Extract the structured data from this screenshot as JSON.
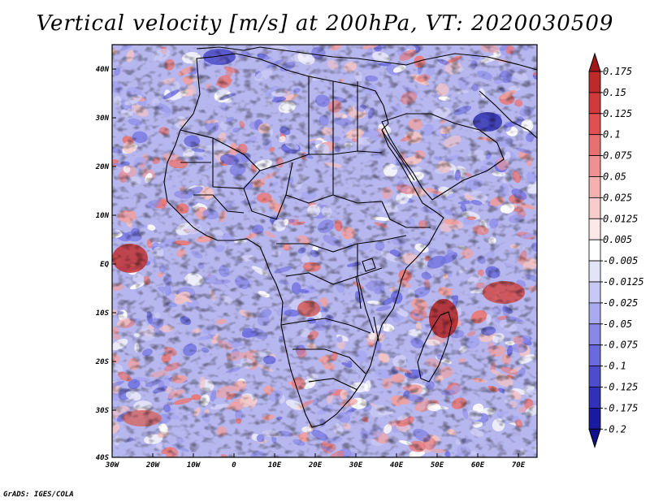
{
  "title": "Vertical velocity [m/s] at 200hPa, VT: 2020030509",
  "credit": "GrADS: IGES/COLA",
  "lat_labels": [
    "40N",
    "30N",
    "20N",
    "10N",
    "EQ",
    "10S",
    "20S",
    "30S",
    "40S"
  ],
  "lon_labels": [
    "30W",
    "20W",
    "10W",
    "0",
    "10E",
    "20E",
    "30E",
    "40E",
    "50E",
    "60E",
    "70E"
  ],
  "colorbar": {
    "labels": [
      "0.175",
      "0.15",
      "0.125",
      "0.1",
      "0.075",
      "0.05",
      "0.025",
      "0.0125",
      "0.005",
      "-0.005",
      "-0.0125",
      "-0.025",
      "-0.05",
      "-0.075",
      "-0.1",
      "-0.125",
      "-0.175",
      "-0.2"
    ],
    "colors": [
      "#a01818",
      "#bc2a2a",
      "#d03a3a",
      "#e05050",
      "#e87070",
      "#f09090",
      "#f5b0b0",
      "#f8cccc",
      "#fce8e8",
      "#ffffff",
      "#e4e4f8",
      "#c8c8f4",
      "#aaaaee",
      "#8888e6",
      "#6a6ade",
      "#4c4ccc",
      "#3030b8",
      "#1a1aa0",
      "#10108c"
    ]
  },
  "colors": {
    "positive": "#e05050",
    "negative": "#6a6ade",
    "border": "#000000"
  }
}
